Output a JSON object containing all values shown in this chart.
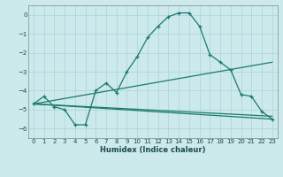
{
  "bg_color": "#cce9eb",
  "grid_color": "#aad4d7",
  "line_color": "#1a7a6e",
  "xlabel": "Humidex (Indice chaleur)",
  "xlim": [
    -0.5,
    23.5
  ],
  "ylim": [
    -6.5,
    0.5
  ],
  "yticks": [
    0,
    -1,
    -2,
    -3,
    -4,
    -5,
    -6
  ],
  "xticks": [
    0,
    1,
    2,
    3,
    4,
    5,
    6,
    7,
    8,
    9,
    10,
    11,
    12,
    13,
    14,
    15,
    16,
    17,
    18,
    19,
    20,
    21,
    22,
    23
  ],
  "series1_x": [
    0,
    1,
    2,
    3,
    4,
    5,
    6,
    7,
    8,
    9,
    10,
    11,
    12,
    13,
    14,
    15,
    16,
    17,
    18,
    19,
    20,
    21,
    22,
    23
  ],
  "series1_y": [
    -4.7,
    -4.3,
    -4.85,
    -5.0,
    -5.8,
    -5.8,
    -4.0,
    -3.6,
    -4.1,
    -3.0,
    -2.2,
    -1.2,
    -0.6,
    -0.1,
    0.1,
    0.1,
    -0.6,
    -2.1,
    -2.5,
    -2.9,
    -4.2,
    -4.3,
    -5.1,
    -5.5
  ],
  "line2_x": [
    0,
    23
  ],
  "line2_y": [
    -4.7,
    -5.5
  ],
  "line3_x": [
    0,
    23
  ],
  "line3_y": [
    -4.7,
    -2.5
  ],
  "line4_x": [
    0,
    23
  ],
  "line4_y": [
    -4.7,
    -5.35
  ]
}
